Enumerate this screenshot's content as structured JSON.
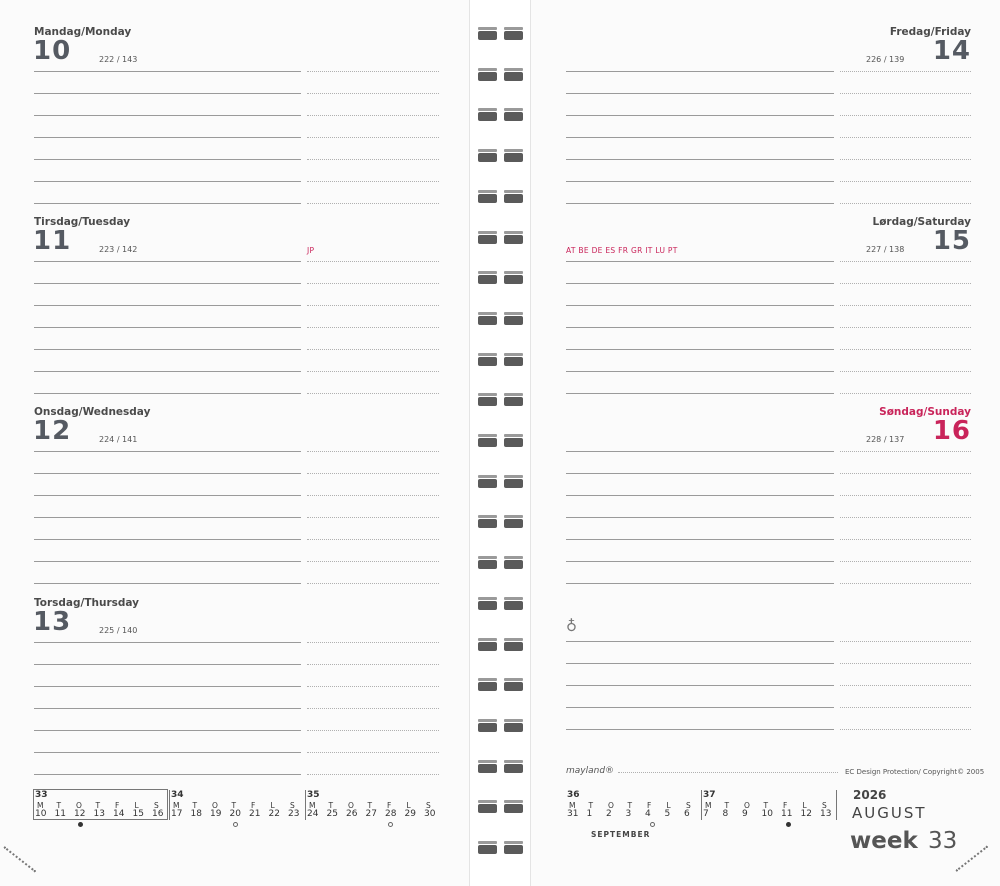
{
  "left_page": {
    "days": [
      {
        "name": "Mandag/Monday",
        "number": "10",
        "count": "222 / 143",
        "holiday": ""
      },
      {
        "name": "Tirsdag/Tuesday",
        "number": "11",
        "count": "223 / 142",
        "holiday": "JP"
      },
      {
        "name": "Onsdag/Wednesday",
        "number": "12",
        "count": "224 / 141",
        "holiday": ""
      },
      {
        "name": "Torsdag/Thursday",
        "number": "13",
        "count": "225 / 140",
        "holiday": ""
      }
    ]
  },
  "right_page": {
    "days": [
      {
        "name": "Fredag/Friday",
        "number": "14",
        "count": "226 / 139",
        "holiday": ""
      },
      {
        "name": "Lørdag/Saturday",
        "number": "15",
        "count": "227 / 138",
        "holiday": "AT  BE  DE  ES  FR  GR  IT   LU  PT"
      },
      {
        "name": "Søndag/Sunday",
        "number": "16",
        "count": "228 / 137",
        "holiday": "",
        "highlight_color": "#c9245a"
      }
    ],
    "symbol": "♁"
  },
  "mini_calendar_left": [
    {
      "week": "33",
      "headers": [
        "M",
        "T",
        "O",
        "T",
        "F",
        "L",
        "S"
      ],
      "dates": [
        "10",
        "11",
        "12",
        "13",
        "14",
        "15",
        "16"
      ]
    },
    {
      "week": "34",
      "headers": [
        "M",
        "T",
        "O",
        "T",
        "F",
        "L",
        "S"
      ],
      "dates": [
        "17",
        "18",
        "19",
        "20",
        "21",
        "22",
        "23"
      ]
    },
    {
      "week": "35",
      "headers": [
        "M",
        "T",
        "O",
        "T",
        "F",
        "L",
        "S"
      ],
      "dates": [
        "24",
        "25",
        "26",
        "27",
        "28",
        "29",
        "30"
      ]
    }
  ],
  "mini_calendar_right": [
    {
      "week": "36",
      "headers": [
        "M",
        "T",
        "O",
        "T",
        "F",
        "L",
        "S"
      ],
      "dates": [
        "31",
        "1",
        "2",
        "3",
        "4",
        "5",
        "6"
      ]
    },
    {
      "week": "37",
      "headers": [
        "M",
        "T",
        "O",
        "T",
        "F",
        "L",
        "S"
      ],
      "dates": [
        "7",
        "8",
        "9",
        "10",
        "11",
        "12",
        "13"
      ]
    }
  ],
  "footer": {
    "brand": "mayland®",
    "copyright": "EC Design Protection/ Copyright© 2005",
    "next_month": "SEPTEMBER",
    "year": "2026",
    "month": "AUGUST",
    "week_label": "week",
    "week_number": "33"
  },
  "colors": {
    "accent_red": "#c9245a",
    "text_gray": "#555a62"
  }
}
